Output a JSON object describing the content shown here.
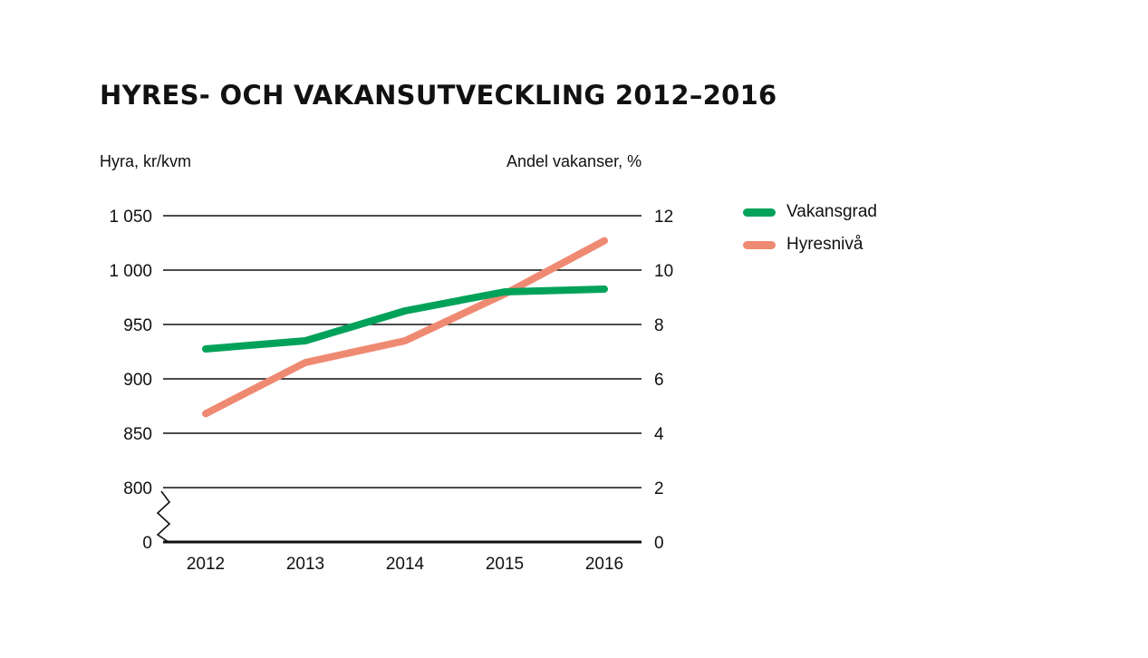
{
  "chart_data": {
    "type": "line",
    "title": "HYRES- OCH VAKANSUTVECKLING 2012–2016",
    "left_axis_label": "Hyra, kr/kvm",
    "right_axis_label": "Andel vakanser, %",
    "categories": [
      "2012",
      "2013",
      "2014",
      "2015",
      "2016"
    ],
    "left_axis": {
      "ticks": [
        0,
        800,
        850,
        900,
        950,
        1000,
        1050
      ],
      "tick_labels": [
        "0",
        "800",
        "850",
        "900",
        "950",
        "1 000",
        "1 050"
      ],
      "axis_break_between": [
        0,
        800
      ]
    },
    "right_axis": {
      "ticks": [
        0,
        2,
        4,
        6,
        8,
        10,
        12
      ],
      "tick_labels": [
        "0",
        "2",
        "4",
        "6",
        "8",
        "10",
        "12"
      ],
      "ylim": [
        0,
        12
      ]
    },
    "series": [
      {
        "name": "Vakansgrad",
        "axis": "right",
        "color": "#00a25a",
        "values": [
          7.1,
          7.4,
          8.5,
          9.2,
          9.3
        ]
      },
      {
        "name": "Hyresnivå",
        "axis": "left",
        "color": "#ef8a72",
        "values": [
          868,
          915,
          935,
          978,
          1027
        ]
      }
    ],
    "legend_position": "right",
    "grid": true
  }
}
